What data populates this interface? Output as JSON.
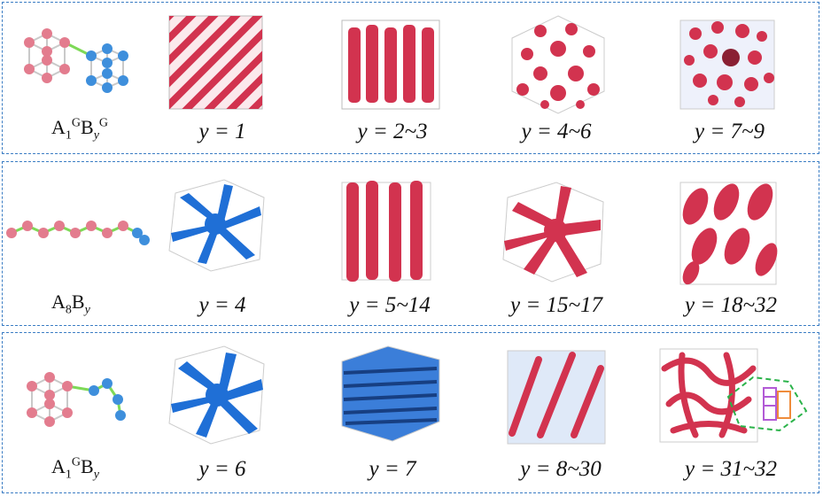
{
  "rows": [
    {
      "molecule": {
        "base_a": "A",
        "sub_a": "1",
        "sup_a": "G",
        "base_b": "B",
        "sub_b": "y",
        "sup_b": "G"
      },
      "labels": [
        "y = 1",
        "y = 2~3",
        "y = 4~6",
        "y = 7~9"
      ],
      "cube_colors": [
        "#d2334f",
        "#d2334f",
        "#d2334f",
        "#d2334f"
      ]
    },
    {
      "molecule": {
        "base_a": "A",
        "sub_a": "8",
        "sup_a": "",
        "base_b": "B",
        "sub_b": "y",
        "sup_b": ""
      },
      "labels": [
        "y = 4",
        "y = 5~14",
        "y = 15~17",
        "y = 18~32"
      ],
      "cube_colors": [
        "#1f6fd6",
        "#d2334f",
        "#d2334f",
        "#d2334f"
      ]
    },
    {
      "molecule": {
        "base_a": "A",
        "sub_a": "1",
        "sup_a": "G",
        "base_b": "B",
        "sub_b": "y",
        "sup_b": ""
      },
      "labels": [
        "y = 6",
        "y = 7",
        "y = 8~30",
        "y = 31~32"
      ],
      "cube_colors": [
        "#1f6fd6",
        "#1f6fd6",
        "#d2334f",
        "#d2334f"
      ]
    }
  ],
  "colors": {
    "a_bead": "#e37c8e",
    "b_bead": "#3e8fdc",
    "bond": "#7ed957",
    "box_border": "#3b7dc4",
    "red": "#d2334f",
    "blue": "#1f6fd6"
  }
}
